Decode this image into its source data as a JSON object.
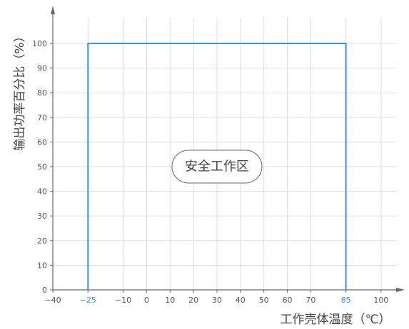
{
  "chart_data": {
    "type": "line",
    "title": "",
    "xlabel": "工作壳体温度（℃）",
    "ylabel": "输出功率百分比（%）",
    "xlim": [
      -40,
      110
    ],
    "ylim": [
      0,
      110
    ],
    "x_ticks": [
      -40,
      -25,
      -10,
      0,
      10,
      20,
      30,
      40,
      50,
      60,
      70,
      85,
      100
    ],
    "x_tick_labels": [
      "−40",
      "−25",
      "−10",
      "0",
      "10",
      "20",
      "30",
      "40",
      "50",
      "60",
      "70",
      "85",
      "100"
    ],
    "highlighted_x_ticks": [
      -25,
      85
    ],
    "y_ticks": [
      0,
      10,
      20,
      30,
      40,
      50,
      60,
      70,
      80,
      90,
      100
    ],
    "y_tick_labels": [
      "0",
      "10",
      "20",
      "30",
      "40",
      "50",
      "60",
      "70",
      "80",
      "90",
      "100"
    ],
    "grid": true,
    "series": [
      {
        "x": [
          -25,
          -25,
          85,
          85
        ],
        "y": [
          0,
          100,
          100,
          0
        ]
      }
    ],
    "annotations": [
      {
        "text": "安全工作区",
        "x": 30,
        "y": 50
      }
    ],
    "colors": {
      "line": "#3a8ee6",
      "highlight_tick": "#3a8ee6",
      "axis": "#666666",
      "grid": "#dddddd",
      "text": "#555555"
    }
  }
}
